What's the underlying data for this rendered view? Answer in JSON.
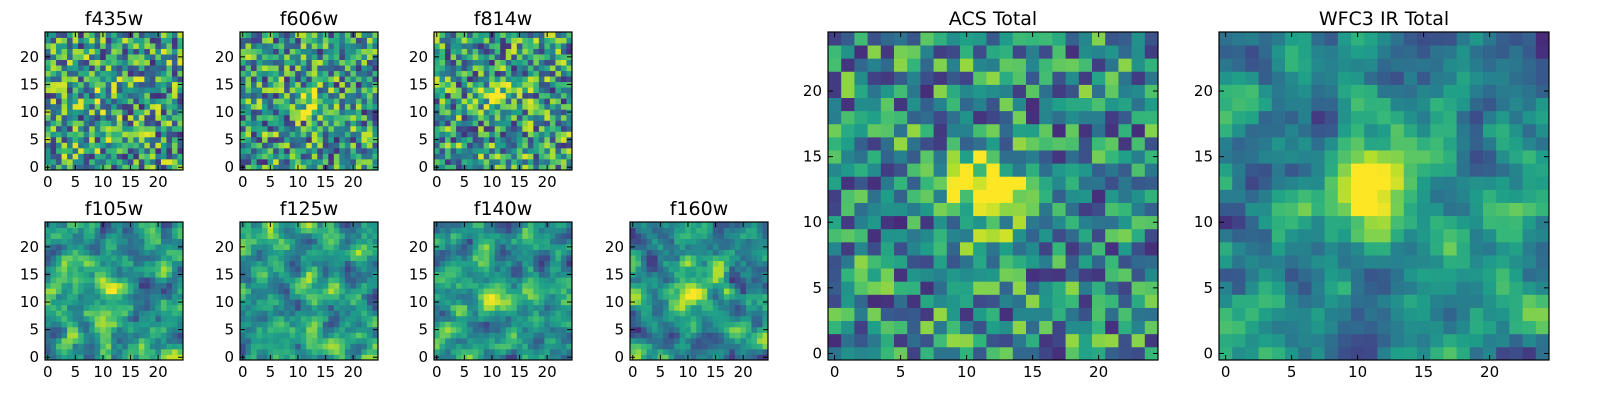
{
  "chart_data": [
    {
      "type": "heatmap",
      "title": "f435w",
      "xticks": [
        0,
        5,
        10,
        15,
        20
      ],
      "yticks": [
        0,
        5,
        10,
        15,
        20
      ],
      "xlim": [
        -0.5,
        24.5
      ],
      "ylim": [
        -0.5,
        24.5
      ],
      "grid_size": 25,
      "colormap": "viridis",
      "source": {
        "x": 11,
        "y": 12.5,
        "strength": 0.1
      }
    },
    {
      "type": "heatmap",
      "title": "f606w",
      "xticks": [
        0,
        5,
        10,
        15,
        20
      ],
      "yticks": [
        0,
        5,
        10,
        15,
        20
      ],
      "xlim": [
        -0.5,
        24.5
      ],
      "ylim": [
        -0.5,
        24.5
      ],
      "grid_size": 25,
      "colormap": "viridis",
      "source": {
        "x": 11.5,
        "y": 12,
        "strength": 0.2
      }
    },
    {
      "type": "heatmap",
      "title": "f814w",
      "xticks": [
        0,
        5,
        10,
        15,
        20
      ],
      "yticks": [
        0,
        5,
        10,
        15,
        20
      ],
      "xlim": [
        -0.5,
        24.5
      ],
      "ylim": [
        -0.5,
        24.5
      ],
      "grid_size": 25,
      "colormap": "viridis",
      "source": {
        "x": 11.5,
        "y": 12,
        "strength": 0.15
      }
    },
    {
      "type": "heatmap",
      "title": "f105w",
      "xticks": [
        0,
        5,
        10,
        15,
        20
      ],
      "yticks": [
        0,
        5,
        10,
        15,
        20
      ],
      "xlim": [
        -0.5,
        24.5
      ],
      "ylim": [
        -0.5,
        24.5
      ],
      "grid_size": 25,
      "colormap": "viridis",
      "source": {
        "x": 12,
        "y": 12,
        "strength": 0.25
      }
    },
    {
      "type": "heatmap",
      "title": "f125w",
      "xticks": [
        0,
        5,
        10,
        15,
        20
      ],
      "yticks": [
        0,
        5,
        10,
        15,
        20
      ],
      "xlim": [
        -0.5,
        24.5
      ],
      "ylim": [
        -0.5,
        24.5
      ],
      "grid_size": 25,
      "colormap": "viridis",
      "source": {
        "x": 12,
        "y": 12,
        "strength": 0.25
      }
    },
    {
      "type": "heatmap",
      "title": "f140w",
      "xticks": [
        0,
        5,
        10,
        15,
        20
      ],
      "yticks": [
        0,
        5,
        10,
        15,
        20
      ],
      "xlim": [
        -0.5,
        24.5
      ],
      "ylim": [
        -0.5,
        24.5
      ],
      "grid_size": 25,
      "colormap": "viridis",
      "source": {
        "x": 10,
        "y": 12,
        "strength": 0.3
      }
    },
    {
      "type": "heatmap",
      "title": "f160w",
      "xticks": [
        0,
        5,
        10,
        15,
        20
      ],
      "yticks": [
        0,
        5,
        10,
        15,
        20
      ],
      "xlim": [
        -0.5,
        24.5
      ],
      "ylim": [
        -0.5,
        24.5
      ],
      "grid_size": 25,
      "colormap": "viridis",
      "source": {
        "x": 11,
        "y": 12,
        "strength": 0.35
      }
    },
    {
      "type": "heatmap",
      "title": "ACS Total",
      "xticks": [
        0,
        5,
        10,
        15,
        20
      ],
      "yticks": [
        0,
        5,
        10,
        15,
        20
      ],
      "xlim": [
        -0.5,
        24.5
      ],
      "ylim": [
        -0.5,
        24.5
      ],
      "grid_size": 25,
      "colormap": "viridis",
      "source": {
        "x": 11.5,
        "y": 12.5,
        "strength": 0.45
      }
    },
    {
      "type": "heatmap",
      "title": "WFC3 IR Total",
      "xticks": [
        0,
        5,
        10,
        15,
        20
      ],
      "yticks": [
        0,
        5,
        10,
        15,
        20
      ],
      "xlim": [
        -0.5,
        24.5
      ],
      "ylim": [
        -0.5,
        24.5
      ],
      "grid_size": 25,
      "colormap": "viridis",
      "source": {
        "x": 11.5,
        "y": 12.5,
        "strength": 0.55
      }
    }
  ]
}
